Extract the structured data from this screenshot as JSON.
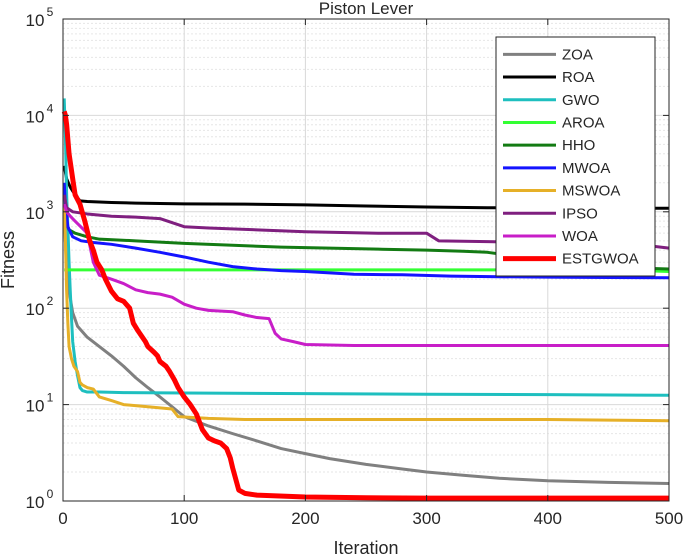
{
  "chart_data": {
    "type": "line",
    "title": "Piston Lever",
    "xlabel": "Iteration",
    "ylabel": "Fitness",
    "yscale": "log",
    "xlim": [
      0,
      500
    ],
    "ylim": [
      1,
      100000
    ],
    "xticks": [
      0,
      100,
      200,
      300,
      400,
      500
    ],
    "xtick_labels": [
      "0",
      "100",
      "200",
      "300",
      "400",
      "500"
    ],
    "yticks": [
      1,
      10,
      100,
      1000,
      10000,
      100000
    ],
    "ytick_labels": [
      {
        "base": "10",
        "exp": "0"
      },
      {
        "base": "10",
        "exp": "1"
      },
      {
        "base": "10",
        "exp": "2"
      },
      {
        "base": "10",
        "exp": "3"
      },
      {
        "base": "10",
        "exp": "4"
      },
      {
        "base": "10",
        "exp": "5"
      }
    ],
    "grid": true,
    "legend_position": "top-right",
    "series": [
      {
        "name": "ZOA",
        "color": "#808080",
        "width": 3,
        "points": [
          [
            1,
            1400
          ],
          [
            2,
            500
          ],
          [
            3,
            250
          ],
          [
            5,
            150
          ],
          [
            8,
            90
          ],
          [
            12,
            65
          ],
          [
            20,
            50
          ],
          [
            30,
            40
          ],
          [
            40,
            32
          ],
          [
            50,
            25
          ],
          [
            60,
            19
          ],
          [
            70,
            15
          ],
          [
            80,
            12
          ],
          [
            90,
            9.5
          ],
          [
            100,
            7.5
          ],
          [
            120,
            6
          ],
          [
            140,
            5
          ],
          [
            160,
            4.2
          ],
          [
            180,
            3.5
          ],
          [
            200,
            3.1
          ],
          [
            220,
            2.75
          ],
          [
            250,
            2.4
          ],
          [
            280,
            2.15
          ],
          [
            300,
            2.0
          ],
          [
            330,
            1.85
          ],
          [
            360,
            1.72
          ],
          [
            400,
            1.62
          ],
          [
            450,
            1.56
          ],
          [
            500,
            1.52
          ]
        ]
      },
      {
        "name": "ROA",
        "color": "#000000",
        "width": 3,
        "points": [
          [
            1,
            3000
          ],
          [
            3,
            2200
          ],
          [
            6,
            1800
          ],
          [
            10,
            1500
          ],
          [
            14,
            1300
          ],
          [
            20,
            1280
          ],
          [
            40,
            1250
          ],
          [
            60,
            1230
          ],
          [
            100,
            1210
          ],
          [
            150,
            1200
          ],
          [
            200,
            1180
          ],
          [
            250,
            1150
          ],
          [
            300,
            1120
          ],
          [
            350,
            1100
          ],
          [
            400,
            1100
          ],
          [
            450,
            1090
          ],
          [
            500,
            1090
          ]
        ]
      },
      {
        "name": "GWO",
        "color": "#1ebfbf",
        "width": 3,
        "points": [
          [
            1,
            15000
          ],
          [
            2,
            6000
          ],
          [
            3,
            1500
          ],
          [
            4,
            700
          ],
          [
            5,
            300
          ],
          [
            6,
            150
          ],
          [
            7,
            80
          ],
          [
            8,
            45
          ],
          [
            10,
            28
          ],
          [
            12,
            20
          ],
          [
            14,
            15
          ],
          [
            16,
            14
          ],
          [
            20,
            13.5
          ],
          [
            30,
            13.5
          ],
          [
            50,
            13.3
          ],
          [
            100,
            13.2
          ],
          [
            200,
            13
          ],
          [
            300,
            12.8
          ],
          [
            400,
            12.7
          ],
          [
            500,
            12.5
          ]
        ]
      },
      {
        "name": "AROA",
        "color": "#33ff33",
        "width": 3,
        "points": [
          [
            1,
            250
          ],
          [
            50,
            250
          ],
          [
            100,
            250
          ],
          [
            200,
            250
          ],
          [
            300,
            250
          ],
          [
            400,
            250
          ],
          [
            460,
            250
          ],
          [
            500,
            240
          ]
        ]
      },
      {
        "name": "HHO",
        "color": "#137b13",
        "width": 3,
        "points": [
          [
            1,
            1000
          ],
          [
            3,
            750
          ],
          [
            5,
            650
          ],
          [
            10,
            600
          ],
          [
            20,
            550
          ],
          [
            30,
            520
          ],
          [
            60,
            500
          ],
          [
            100,
            470
          ],
          [
            140,
            450
          ],
          [
            180,
            430
          ],
          [
            220,
            420
          ],
          [
            260,
            410
          ],
          [
            300,
            400
          ],
          [
            330,
            390
          ],
          [
            350,
            380
          ],
          [
            380,
            340
          ],
          [
            400,
            330
          ],
          [
            420,
            310
          ],
          [
            440,
            290
          ],
          [
            460,
            270
          ],
          [
            480,
            260
          ],
          [
            500,
            255
          ]
        ]
      },
      {
        "name": "MWOA",
        "color": "#1414ff",
        "width": 3,
        "points": [
          [
            1,
            2000
          ],
          [
            2,
            1200
          ],
          [
            4,
            700
          ],
          [
            8,
            550
          ],
          [
            15,
            500
          ],
          [
            25,
            480
          ],
          [
            40,
            460
          ],
          [
            60,
            420
          ],
          [
            80,
            380
          ],
          [
            100,
            340
          ],
          [
            120,
            300
          ],
          [
            140,
            270
          ],
          [
            160,
            255
          ],
          [
            180,
            245
          ],
          [
            200,
            240
          ],
          [
            240,
            225
          ],
          [
            280,
            222
          ],
          [
            320,
            215
          ],
          [
            360,
            212
          ],
          [
            400,
            210
          ],
          [
            450,
            208
          ],
          [
            500,
            207
          ]
        ]
      },
      {
        "name": "MSWOA",
        "color": "#e6b028",
        "width": 3,
        "points": [
          [
            1,
            1200
          ],
          [
            2,
            500
          ],
          [
            3,
            150
          ],
          [
            4,
            70
          ],
          [
            5,
            40
          ],
          [
            7,
            30
          ],
          [
            9,
            25
          ],
          [
            12,
            22
          ],
          [
            14,
            17
          ],
          [
            16,
            16
          ],
          [
            20,
            15
          ],
          [
            25,
            14.5
          ],
          [
            30,
            12
          ],
          [
            40,
            11
          ],
          [
            50,
            10
          ],
          [
            70,
            9.5
          ],
          [
            90,
            9
          ],
          [
            95,
            7.5
          ],
          [
            120,
            7.2
          ],
          [
            150,
            7
          ],
          [
            200,
            7
          ],
          [
            250,
            7
          ],
          [
            300,
            7
          ],
          [
            350,
            7
          ],
          [
            400,
            7
          ],
          [
            450,
            6.9
          ],
          [
            500,
            6.8
          ]
        ]
      },
      {
        "name": "IPSO",
        "color": "#7f1f7f",
        "width": 3,
        "points": [
          [
            1,
            1500
          ],
          [
            3,
            1100
          ],
          [
            8,
            1000
          ],
          [
            20,
            950
          ],
          [
            40,
            900
          ],
          [
            60,
            880
          ],
          [
            80,
            850
          ],
          [
            100,
            700
          ],
          [
            120,
            680
          ],
          [
            160,
            650
          ],
          [
            200,
            620
          ],
          [
            260,
            600
          ],
          [
            300,
            600
          ],
          [
            310,
            500
          ],
          [
            350,
            490
          ],
          [
            400,
            480
          ],
          [
            450,
            470
          ],
          [
            480,
            450
          ],
          [
            500,
            420
          ]
        ]
      },
      {
        "name": "WOA",
        "color": "#c81ec8",
        "width": 3,
        "points": [
          [
            1,
            1200
          ],
          [
            3,
            1000
          ],
          [
            6,
            900
          ],
          [
            10,
            800
          ],
          [
            20,
            600
          ],
          [
            25,
            300
          ],
          [
            30,
            220
          ],
          [
            40,
            200
          ],
          [
            50,
            180
          ],
          [
            60,
            155
          ],
          [
            70,
            145
          ],
          [
            80,
            140
          ],
          [
            90,
            130
          ],
          [
            100,
            110
          ],
          [
            110,
            100
          ],
          [
            120,
            95
          ],
          [
            140,
            92
          ],
          [
            150,
            85
          ],
          [
            160,
            80
          ],
          [
            170,
            78
          ],
          [
            175,
            55
          ],
          [
            180,
            48
          ],
          [
            190,
            45
          ],
          [
            200,
            42
          ],
          [
            240,
            41
          ],
          [
            300,
            41
          ],
          [
            400,
            41
          ],
          [
            500,
            41
          ]
        ]
      },
      {
        "name": "ESTGWOA",
        "color": "#ff0000",
        "width": 5,
        "points": [
          [
            1,
            11000
          ],
          [
            2,
            10000
          ],
          [
            3,
            8000
          ],
          [
            5,
            4000
          ],
          [
            8,
            2200
          ],
          [
            10,
            1500
          ],
          [
            14,
            1200
          ],
          [
            18,
            800
          ],
          [
            22,
            500
          ],
          [
            25,
            400
          ],
          [
            28,
            300
          ],
          [
            32,
            250
          ],
          [
            35,
            200
          ],
          [
            40,
            150
          ],
          [
            45,
            125
          ],
          [
            50,
            118
          ],
          [
            55,
            100
          ],
          [
            58,
            70
          ],
          [
            62,
            58
          ],
          [
            68,
            45
          ],
          [
            70,
            40
          ],
          [
            75,
            35
          ],
          [
            78,
            32
          ],
          [
            80,
            28
          ],
          [
            85,
            25
          ],
          [
            88,
            22
          ],
          [
            92,
            18
          ],
          [
            95,
            15
          ],
          [
            100,
            12
          ],
          [
            105,
            10
          ],
          [
            110,
            8
          ],
          [
            115,
            5.5
          ],
          [
            120,
            4.5
          ],
          [
            125,
            4.2
          ],
          [
            130,
            4
          ],
          [
            135,
            3.5
          ],
          [
            138,
            2.8
          ],
          [
            140,
            2.2
          ],
          [
            145,
            1.3
          ],
          [
            150,
            1.2
          ],
          [
            160,
            1.15
          ],
          [
            200,
            1.1
          ],
          [
            250,
            1.08
          ],
          [
            300,
            1.07
          ],
          [
            400,
            1.07
          ],
          [
            500,
            1.07
          ]
        ]
      }
    ]
  }
}
